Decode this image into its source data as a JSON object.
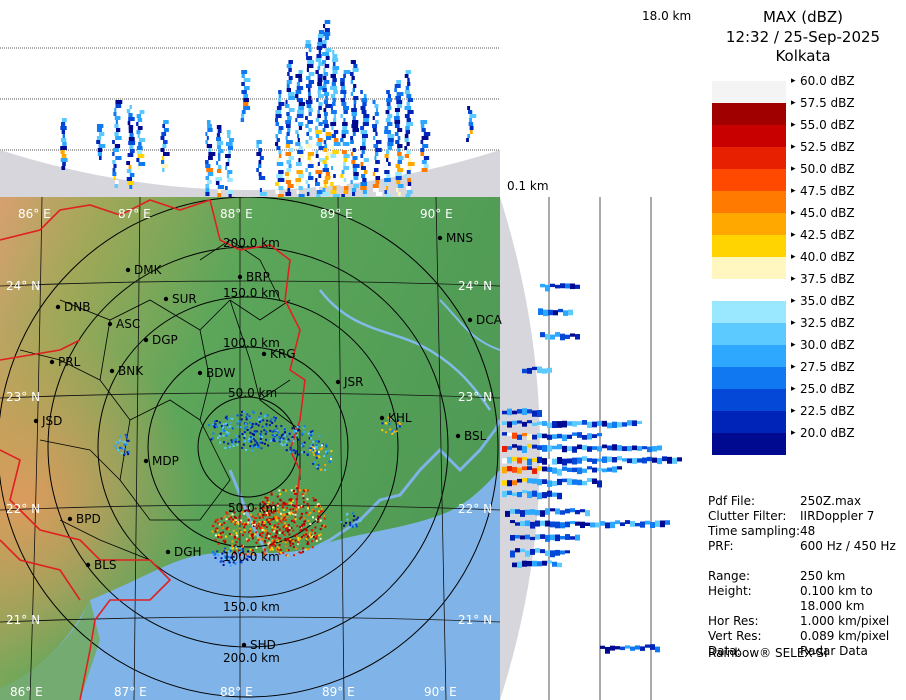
{
  "header": {
    "product": "MAX (dBZ)",
    "datetime": "12:32 / 25-Sep-2025",
    "station": "Kolkata"
  },
  "height_axis": {
    "top": "18.0 km",
    "bottom": "0.1 km"
  },
  "legend": [
    {
      "label": "60.0 dBZ",
      "color": "#f4f4f4"
    },
    {
      "label": "57.5 dBZ",
      "color": "#a00000"
    },
    {
      "label": "55.0 dBZ",
      "color": "#c80000"
    },
    {
      "label": "52.5 dBZ",
      "color": "#e62000"
    },
    {
      "label": "50.0 dBZ",
      "color": "#ff4800"
    },
    {
      "label": "47.5 dBZ",
      "color": "#ff7a00"
    },
    {
      "label": "45.0 dBZ",
      "color": "#ffa800"
    },
    {
      "label": "42.5 dBZ",
      "color": "#ffd400"
    },
    {
      "label": "40.0 dBZ",
      "color": "#fff6c0"
    },
    {
      "label": "37.5 dBZ",
      "color": "#ffffff"
    },
    {
      "label": "35.0 dBZ",
      "color": "#9ae8ff"
    },
    {
      "label": "32.5 dBZ",
      "color": "#5ccaff"
    },
    {
      "label": "30.0 dBZ",
      "color": "#2ea8ff"
    },
    {
      "label": "27.5 dBZ",
      "color": "#1078f0"
    },
    {
      "label": "25.0 dBZ",
      "color": "#0448d8"
    },
    {
      "label": "22.5 dBZ",
      "color": "#0024b8"
    },
    {
      "label": "20.0 dBZ",
      "color": "#000a90"
    }
  ],
  "info": [
    {
      "key": "Pdf File:",
      "value": "250Z.max"
    },
    {
      "key": "Clutter Filter:",
      "value": "IIRDoppler 7"
    },
    {
      "key": "Time sampling:",
      "value": "48"
    },
    {
      "key": "PRF:",
      "value": "600 Hz / 450 Hz"
    },
    {
      "key": "Range:",
      "value": "250 km"
    },
    {
      "key": "Height:",
      "value": "0.100 km to 18.000 km"
    },
    {
      "key": "Hor Res:",
      "value": "1.000 km/pixel"
    },
    {
      "key": "Vert Res:",
      "value": "0.089 km/pixel"
    },
    {
      "key": "Data:",
      "value": "Radar Data"
    }
  ],
  "footer": "Rainbow® SELEX-SI",
  "map": {
    "lon_labels": [
      "86° E",
      "87° E",
      "88° E",
      "89° E",
      "90° E"
    ],
    "lat_labels": [
      "24° N",
      "23° N",
      "22° N",
      "21° N"
    ],
    "ring_labels": [
      "200.0 km",
      "150.0 km",
      "100.0 km",
      "50.0 km",
      "50.0 km",
      "100.0 km",
      "150.0 km",
      "200.0 km"
    ],
    "cities": [
      {
        "name": "MNS"
      },
      {
        "name": "DMK"
      },
      {
        "name": "BRP"
      },
      {
        "name": "SUR"
      },
      {
        "name": "DNB"
      },
      {
        "name": "ASC"
      },
      {
        "name": "DGP"
      },
      {
        "name": "KRG"
      },
      {
        "name": "DCA"
      },
      {
        "name": "PRL"
      },
      {
        "name": "BNK"
      },
      {
        "name": "BDW"
      },
      {
        "name": "JSR"
      },
      {
        "name": "JSD"
      },
      {
        "name": "KHL"
      },
      {
        "name": "BSL"
      },
      {
        "name": "MDP"
      },
      {
        "name": "BPD"
      },
      {
        "name": "DGH"
      },
      {
        "name": "BLS"
      },
      {
        "name": "SHD"
      }
    ]
  },
  "colors": {
    "land_low": "#55a855",
    "land_high": "#c87a40",
    "sea": "#7fb2e6",
    "border": "#e02020",
    "side_panel_bg": "#ffffff",
    "terrain_cone": "#d6d6dc"
  }
}
